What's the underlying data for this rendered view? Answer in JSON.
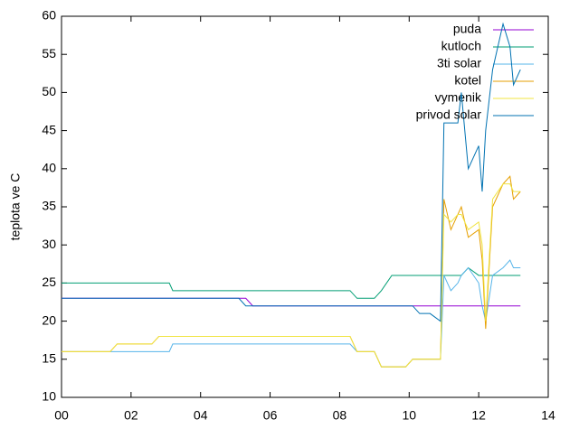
{
  "chart_data": {
    "type": "line",
    "ylabel": "teplota ve C",
    "x": [
      0,
      1.4,
      1.6,
      2.6,
      2.8,
      3.1,
      3.2,
      5.1,
      5.3,
      5.5,
      8.3,
      8.5,
      9.0,
      9.2,
      9.5,
      9.9,
      10.1,
      10.3,
      10.6,
      10.9,
      11.0,
      11.2,
      11.4,
      11.5,
      11.7,
      12.0,
      12.1,
      12.2,
      12.4,
      12.7,
      12.9,
      13.0,
      13.2
    ],
    "series": [
      {
        "name": "puda",
        "color": "#9400d3",
        "values": [
          23,
          23,
          23,
          23,
          23,
          23,
          23,
          23,
          23,
          22,
          22,
          22,
          22,
          22,
          22,
          22,
          22,
          22,
          22,
          22,
          22,
          22,
          22,
          22,
          22,
          22,
          22,
          22,
          22,
          22,
          22,
          22,
          22
        ]
      },
      {
        "name": "kutloch",
        "color": "#009e73",
        "values": [
          25,
          25,
          25,
          25,
          25,
          25,
          24,
          24,
          24,
          24,
          24,
          23,
          23,
          24,
          26,
          26,
          26,
          26,
          26,
          26,
          26,
          26,
          26,
          26,
          27,
          26,
          26,
          26,
          26,
          26,
          26,
          26,
          26
        ]
      },
      {
        "name": "3ti solar",
        "color": "#56b4e9",
        "values": [
          16,
          16,
          16,
          16,
          16,
          16,
          17,
          17,
          17,
          17,
          17,
          16,
          16,
          14,
          14,
          14,
          15,
          15,
          15,
          15,
          26,
          24,
          25,
          26,
          27,
          25,
          22,
          20,
          26,
          27,
          28,
          27,
          27
        ]
      },
      {
        "name": "kotel",
        "color": "#e69f00",
        "values": [
          16,
          16,
          17,
          17,
          18,
          18,
          18,
          18,
          18,
          18,
          18,
          16,
          16,
          14,
          14,
          14,
          15,
          15,
          15,
          15,
          36,
          32,
          34,
          35,
          31,
          32,
          28,
          19,
          35,
          38,
          39,
          36,
          37
        ]
      },
      {
        "name": "vymenik",
        "color": "#f0e442",
        "values": [
          16,
          16,
          17,
          17,
          18,
          18,
          18,
          18,
          18,
          18,
          18,
          16,
          16,
          14,
          14,
          14,
          15,
          15,
          15,
          15,
          34,
          33,
          34,
          34,
          32,
          33,
          30,
          20,
          36,
          38,
          38,
          37,
          37
        ]
      },
      {
        "name": "privod solar",
        "color": "#0072b2",
        "values": [
          23,
          23,
          23,
          23,
          23,
          23,
          23,
          23,
          22,
          22,
          22,
          22,
          22,
          22,
          22,
          22,
          22,
          21,
          21,
          20,
          46,
          46,
          46,
          50,
          40,
          43,
          37,
          45,
          53,
          59,
          56,
          51,
          53
        ]
      }
    ],
    "xlim": [
      0,
      14
    ],
    "xticks": [
      {
        "value": 0,
        "label": "00"
      },
      {
        "value": 2,
        "label": "02"
      },
      {
        "value": 4,
        "label": "04"
      },
      {
        "value": 6,
        "label": "06"
      },
      {
        "value": 8,
        "label": "08"
      },
      10,
      12,
      14
    ],
    "ylim": [
      10,
      60
    ],
    "yticks": [
      10,
      15,
      20,
      25,
      30,
      35,
      40,
      45,
      50,
      55,
      60
    ],
    "legend": "top-right"
  }
}
